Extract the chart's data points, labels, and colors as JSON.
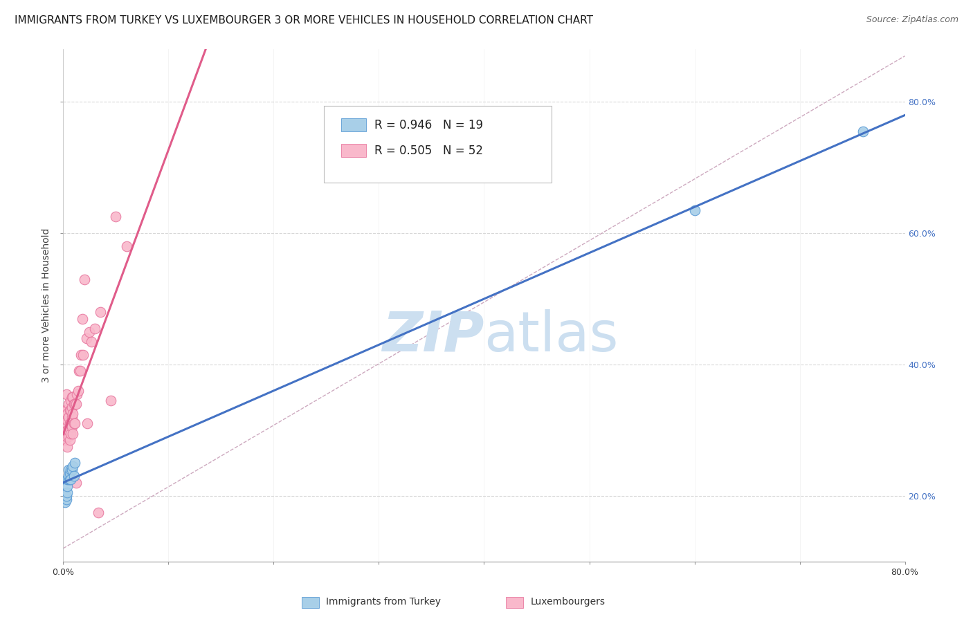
{
  "title": "IMMIGRANTS FROM TURKEY VS LUXEMBOURGER 3 OR MORE VEHICLES IN HOUSEHOLD CORRELATION CHART",
  "source": "Source: ZipAtlas.com",
  "ylabel": "3 or more Vehicles in Household",
  "xlim": [
    0.0,
    0.8
  ],
  "ylim": [
    0.1,
    0.88
  ],
  "xticks": [
    0.0,
    0.1,
    0.2,
    0.3,
    0.4,
    0.5,
    0.6,
    0.7,
    0.8
  ],
  "xticklabels_show": [
    "0.0%",
    "",
    "",
    "",
    "",
    "",
    "",
    "",
    "80.0%"
  ],
  "yticks": [
    0.2,
    0.4,
    0.6,
    0.8
  ],
  "yticklabels": [
    "20.0%",
    "40.0%",
    "60.0%",
    "80.0%"
  ],
  "blue_label": "Immigrants from Turkey",
  "pink_label": "Luxembourgers",
  "blue_R": "0.946",
  "blue_N": "19",
  "pink_R": "0.505",
  "pink_N": "52",
  "blue_color": "#a8cfe8",
  "pink_color": "#f9b8cb",
  "blue_edge_color": "#5b9bd5",
  "pink_edge_color": "#e879a0",
  "blue_line_color": "#4472c4",
  "pink_line_color": "#e05c8a",
  "dashed_line_color": "#c8a0b8",
  "background_color": "#ffffff",
  "grid_color": "#d8d8d8",
  "watermark_color": "#ccdff0",
  "blue_x": [
    0.002,
    0.003,
    0.003,
    0.004,
    0.004,
    0.004,
    0.005,
    0.005,
    0.005,
    0.006,
    0.006,
    0.007,
    0.007,
    0.008,
    0.009,
    0.01,
    0.011,
    0.6,
    0.76
  ],
  "blue_y": [
    0.19,
    0.195,
    0.2,
    0.205,
    0.215,
    0.225,
    0.225,
    0.23,
    0.24,
    0.225,
    0.235,
    0.24,
    0.225,
    0.24,
    0.245,
    0.23,
    0.25,
    0.635,
    0.755
  ],
  "pink_x": [
    0.002,
    0.002,
    0.003,
    0.003,
    0.003,
    0.003,
    0.004,
    0.004,
    0.004,
    0.004,
    0.005,
    0.005,
    0.005,
    0.005,
    0.006,
    0.006,
    0.006,
    0.007,
    0.007,
    0.007,
    0.007,
    0.008,
    0.008,
    0.008,
    0.008,
    0.009,
    0.009,
    0.009,
    0.01,
    0.01,
    0.011,
    0.011,
    0.012,
    0.013,
    0.014,
    0.015,
    0.016,
    0.017,
    0.019,
    0.022,
    0.025,
    0.027,
    0.03,
    0.035,
    0.05,
    0.012,
    0.018,
    0.02,
    0.023,
    0.033,
    0.045,
    0.06
  ],
  "pink_y": [
    0.285,
    0.33,
    0.29,
    0.31,
    0.33,
    0.355,
    0.275,
    0.3,
    0.315,
    0.325,
    0.29,
    0.3,
    0.32,
    0.34,
    0.285,
    0.31,
    0.33,
    0.295,
    0.31,
    0.33,
    0.345,
    0.305,
    0.32,
    0.335,
    0.35,
    0.295,
    0.325,
    0.35,
    0.31,
    0.34,
    0.31,
    0.34,
    0.34,
    0.355,
    0.36,
    0.39,
    0.39,
    0.415,
    0.415,
    0.44,
    0.45,
    0.435,
    0.455,
    0.48,
    0.625,
    0.22,
    0.47,
    0.53,
    0.31,
    0.175,
    0.345,
    0.58
  ],
  "title_fontsize": 11,
  "source_fontsize": 9,
  "tick_fontsize": 9,
  "legend_fontsize": 12,
  "axis_label_fontsize": 10
}
